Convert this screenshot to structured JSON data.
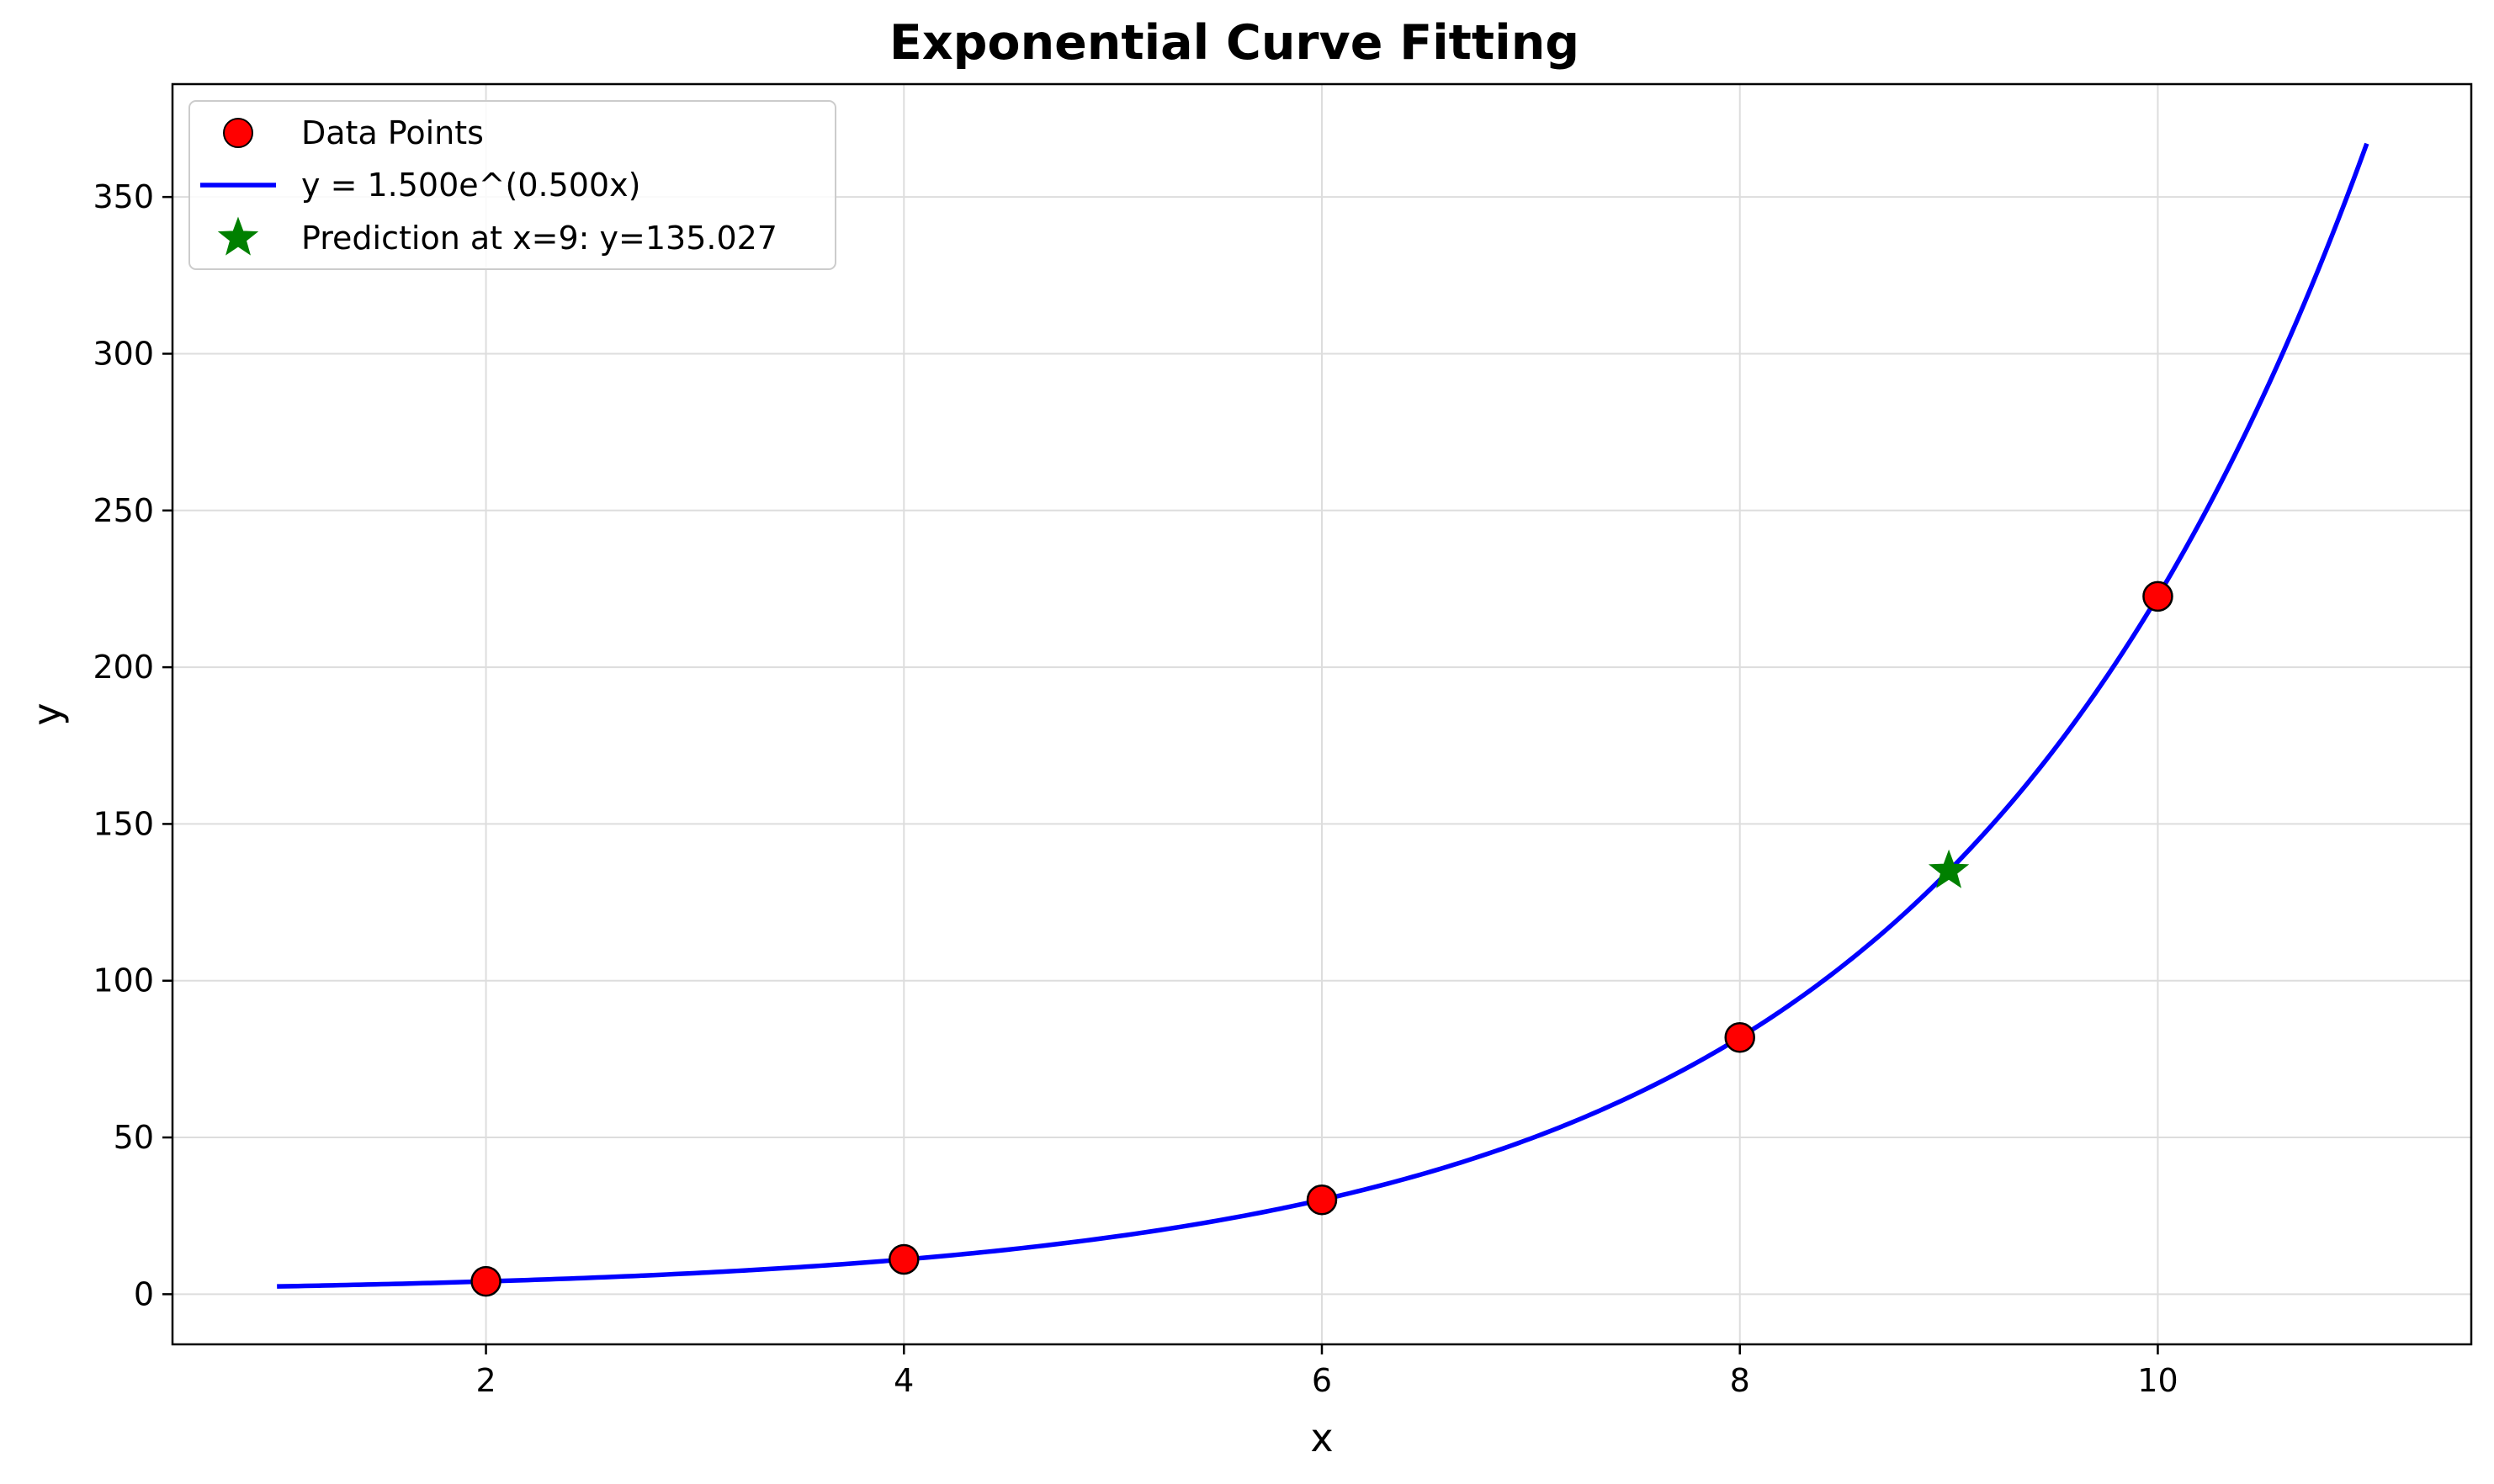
{
  "chart_data": {
    "type": "scatter",
    "title": "Exponential Curve Fitting",
    "xlabel": "x",
    "ylabel": "y",
    "xlim": [
      0.5,
      11.5
    ],
    "ylim": [
      -16,
      386
    ],
    "xticks": [
      2,
      4,
      6,
      8,
      10
    ],
    "yticks": [
      0,
      50,
      100,
      150,
      200,
      250,
      300,
      350
    ],
    "grid": true,
    "legend_position": "upper-left",
    "series": [
      {
        "name": "Data Points",
        "kind": "scatter",
        "color": "#ff0000",
        "edge_color": "#000000",
        "x": [
          2,
          4,
          6,
          8,
          10
        ],
        "y": [
          4.1,
          11.1,
          30.1,
          81.9,
          222.6
        ]
      },
      {
        "name": "y = 1.500e^(0.500x)",
        "kind": "line",
        "color": "#0000ff",
        "function": {
          "a": 1.5,
          "b": 0.5
        },
        "x_range": [
          1,
          11
        ]
      },
      {
        "name": "Prediction at x=9: y=135.027",
        "kind": "star",
        "color": "#008000",
        "x": [
          9
        ],
        "y": [
          135.027
        ]
      }
    ]
  }
}
